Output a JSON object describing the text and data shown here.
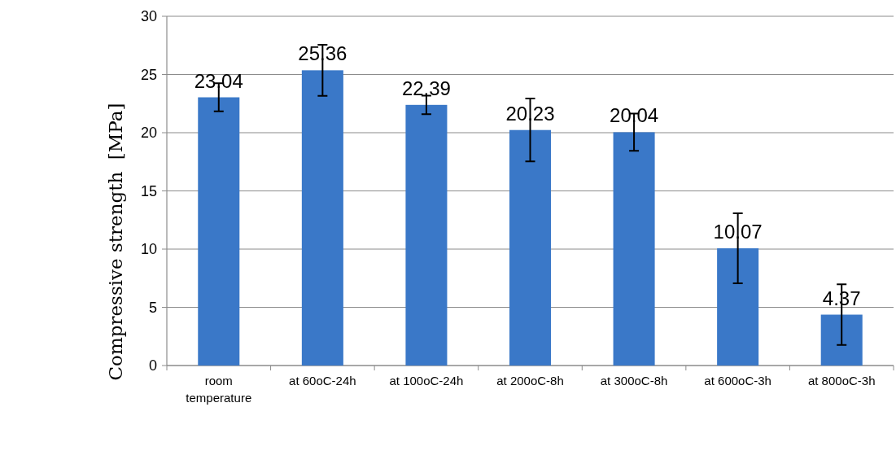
{
  "chart_data": {
    "type": "bar",
    "ylabel": "Compressive strength  [MPa]",
    "categories": [
      "room temperature",
      "at 60oC-24h",
      "at 100oC-24h",
      "at 200oC-8h",
      "at 300oC-8h",
      "at 600oC-3h",
      "at 800oC-3h"
    ],
    "values": [
      23.04,
      25.36,
      22.39,
      20.23,
      20.04,
      10.07,
      4.37
    ],
    "errors": [
      1.2,
      2.2,
      0.8,
      2.7,
      1.6,
      3.0,
      2.6
    ],
    "color": "#3a78c8",
    "ylim": [
      0,
      30
    ],
    "yticks": [
      0,
      5,
      10,
      15,
      20,
      25,
      30
    ],
    "grid": "y",
    "data_labels": true
  }
}
